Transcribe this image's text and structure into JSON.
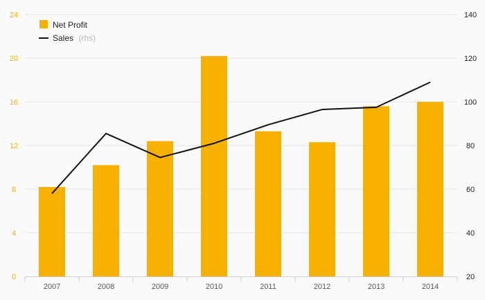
{
  "chart_data": {
    "type": "bar",
    "categories": [
      "2007",
      "2008",
      "2009",
      "2010",
      "2011",
      "2012",
      "2013",
      "2014"
    ],
    "series": [
      {
        "name": "Net Profit",
        "type": "bar",
        "axis": "left",
        "values": [
          8.2,
          10.2,
          12.4,
          20.2,
          13.3,
          12.3,
          15.6,
          16.0
        ]
      },
      {
        "name": "Sales",
        "name_suffix": "(rhs)",
        "type": "line",
        "axis": "right",
        "values": [
          58,
          85.5,
          74.5,
          81,
          89.5,
          96.5,
          97.5,
          109
        ]
      }
    ],
    "y_left": {
      "ylim": [
        0,
        24
      ],
      "ticks": [
        "0",
        "4",
        "8",
        "12",
        "16",
        "20",
        "24"
      ]
    },
    "y_right": {
      "ylim": [
        20,
        140
      ],
      "ticks": [
        "20",
        "40",
        "60",
        "80",
        "100",
        "120",
        "140"
      ]
    },
    "grid": true,
    "legend_position": "top-left",
    "colors": {
      "bar": "#f5b000",
      "line": "#111111",
      "left_axis_text": "#f5b000",
      "right_axis_text": "#222222",
      "grid": "#e4e4e4"
    }
  }
}
